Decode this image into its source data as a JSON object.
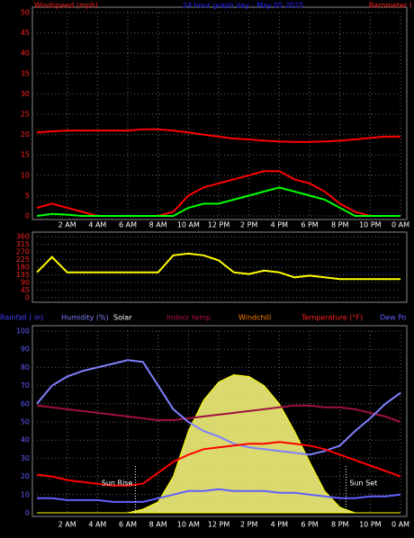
{
  "chart_data": [
    {
      "type": "line",
      "title": "24 hour graph day - May 05 2025",
      "left_label": "Windspeed (mph)",
      "right_label": "Barometer (",
      "x": [
        0,
        1,
        2,
        3,
        4,
        5,
        6,
        7,
        8,
        9,
        10,
        11,
        12,
        13,
        14,
        15,
        16,
        17,
        18,
        19,
        20,
        21,
        22,
        23,
        24
      ],
      "xlim": [
        0,
        24
      ],
      "ylim": [
        0,
        50
      ],
      "yticks": [
        0,
        5,
        10,
        15,
        20,
        25,
        30,
        35,
        40,
        45,
        50
      ],
      "tick_color": "#ff2020",
      "grid": true,
      "xticks": [
        {
          "value": 2,
          "label": "2 AM"
        },
        {
          "value": 4,
          "label": "4 AM"
        },
        {
          "value": 6,
          "label": "6 AM"
        },
        {
          "value": 8,
          "label": "8 AM"
        },
        {
          "value": 10,
          "label": "10 AM"
        },
        {
          "value": 12,
          "label": "12 PM"
        },
        {
          "value": 14,
          "label": "2 PM"
        },
        {
          "value": 16,
          "label": "4 PM"
        },
        {
          "value": 18,
          "label": "6 PM"
        },
        {
          "value": 20,
          "label": "8 PM"
        },
        {
          "value": 22,
          "label": "10 PM"
        },
        {
          "value": 24,
          "label": "0 AM"
        }
      ],
      "series": [
        {
          "color": "#ff0000",
          "values": [
            20.5,
            20.8,
            21,
            21,
            21,
            21,
            21,
            21.3,
            21.3,
            21,
            20.5,
            20,
            19.5,
            19,
            18.8,
            18.5,
            18.3,
            18.2,
            18.2,
            18.3,
            18.5,
            18.8,
            19.2,
            19.5,
            19.5
          ]
        },
        {
          "color": "#ff0000",
          "values": [
            2,
            3,
            2,
            1,
            0,
            0,
            0,
            0,
            0,
            1,
            5,
            7,
            8,
            9,
            10,
            11,
            11,
            9,
            8,
            6,
            3,
            1,
            0,
            0,
            0
          ]
        },
        {
          "color": "#00ff00",
          "values": [
            0,
            0.5,
            0.3,
            0,
            0,
            0,
            0,
            0,
            0,
            0,
            2,
            3,
            3,
            4,
            5,
            6,
            7,
            6,
            5,
            4,
            2,
            0,
            0,
            0,
            0
          ]
        }
      ]
    },
    {
      "type": "line",
      "x": [
        0,
        1,
        2,
        3,
        4,
        5,
        6,
        7,
        8,
        9,
        10,
        11,
        12,
        13,
        14,
        15,
        16,
        17,
        18,
        19,
        20,
        21,
        22,
        23,
        24
      ],
      "xlim": [
        0,
        24
      ],
      "ylim": [
        0,
        360
      ],
      "yticks": [
        0,
        45,
        90,
        135,
        180,
        225,
        270,
        315,
        360
      ],
      "tick_color": "#ff2020",
      "grid": true,
      "series": [
        {
          "color": "#ffff00",
          "values": [
            150,
            240,
            150,
            150,
            150,
            150,
            150,
            150,
            150,
            250,
            260,
            250,
            220,
            150,
            140,
            160,
            150,
            120,
            130,
            120,
            110,
            110,
            110,
            110,
            110
          ]
        }
      ]
    },
    {
      "type": "line",
      "legend": [
        {
          "text": "Rainfall ( in)",
          "color": "#4040ff"
        },
        {
          "text": "Humidity (%)",
          "color": "#8080ff"
        },
        {
          "text": "Solar",
          "color": "#ffffff"
        },
        {
          "text": "Indoor temp",
          "color": "#b01040"
        },
        {
          "text": "Windchill",
          "color": "#ff8000"
        },
        {
          "text": "Temperature (°F)",
          "color": "#ff2020"
        },
        {
          "text": "Dew Po",
          "color": "#6060ff"
        }
      ],
      "x": [
        0,
        1,
        2,
        3,
        4,
        5,
        6,
        7,
        8,
        9,
        10,
        11,
        12,
        13,
        14,
        15,
        16,
        17,
        18,
        19,
        20,
        21,
        22,
        23,
        24
      ],
      "xlim": [
        0,
        24
      ],
      "ylim": [
        0,
        100
      ],
      "yticks": [
        0,
        10,
        20,
        30,
        40,
        50,
        60,
        70,
        80,
        90,
        100
      ],
      "tick_color": "#6060ff",
      "grid": true,
      "xticks": [
        {
          "value": 2,
          "label": "2 AM"
        },
        {
          "value": 4,
          "label": "4 AM"
        },
        {
          "value": 6,
          "label": "6 AM"
        },
        {
          "value": 8,
          "label": "8 AM"
        },
        {
          "value": 10,
          "label": "10 AM"
        },
        {
          "value": 12,
          "label": "12 PM"
        },
        {
          "value": 14,
          "label": "2 PM"
        },
        {
          "value": 16,
          "label": "4 PM"
        },
        {
          "value": 18,
          "label": "6 PM"
        },
        {
          "value": 20,
          "label": "8 PM"
        },
        {
          "value": 22,
          "label": "10 PM"
        },
        {
          "value": 24,
          "label": "0 AM"
        }
      ],
      "annotations": [
        {
          "text": "Sun Rise",
          "x": 6.5
        },
        {
          "text": "Sun Set",
          "x": 20.4
        }
      ],
      "series": [
        {
          "color": "#ffff80",
          "area": true,
          "values": [
            0,
            0,
            0,
            0,
            0,
            0,
            0,
            2,
            6,
            20,
            45,
            62,
            72,
            76,
            75,
            70,
            60,
            45,
            28,
            12,
            3,
            0,
            0,
            0,
            0
          ]
        },
        {
          "color": "#a01040",
          "values": [
            59,
            58,
            57,
            56,
            55,
            54,
            53,
            52,
            51,
            51,
            52,
            53,
            54,
            55,
            56,
            57,
            58,
            59,
            59,
            58,
            58,
            57,
            55,
            53,
            50
          ]
        },
        {
          "color": "#8080ff",
          "values": [
            60,
            70,
            75,
            78,
            80,
            82,
            84,
            83,
            70,
            57,
            50,
            45,
            42,
            38,
            36,
            35,
            34,
            33,
            32,
            34,
            37,
            45,
            52,
            60,
            66
          ]
        },
        {
          "color": "#ff0000",
          "values": [
            21,
            20,
            18,
            17,
            16,
            15,
            15,
            16,
            22,
            28,
            32,
            35,
            36,
            37,
            38,
            38,
            39,
            38,
            37,
            35,
            32,
            29,
            26,
            23,
            20
          ]
        },
        {
          "color": "#6060ff",
          "values": [
            8,
            8,
            7,
            7,
            7,
            6,
            6,
            6,
            8,
            10,
            12,
            12,
            13,
            12,
            12,
            12,
            11,
            11,
            10,
            9,
            8,
            8,
            9,
            9,
            10
          ]
        }
      ]
    }
  ]
}
